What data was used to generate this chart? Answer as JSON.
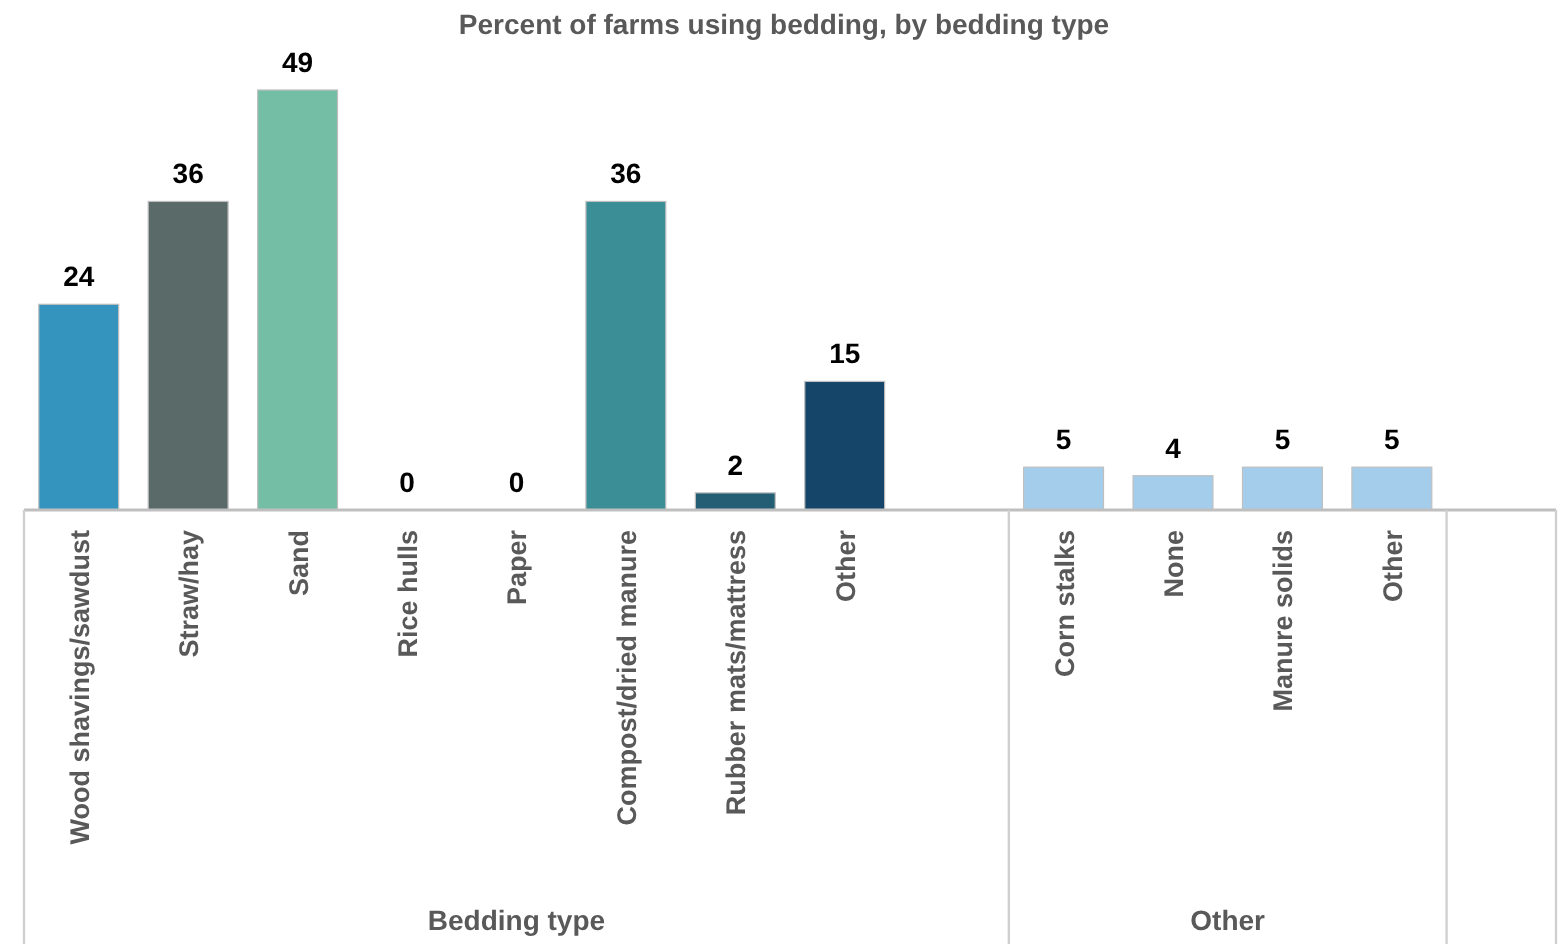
{
  "chart_data": {
    "type": "bar",
    "title": "Percent of farms using bedding, by bedding type",
    "categories": [
      "Wood shavings/sawdust",
      "Straw/hay",
      "Sand",
      "Rice hulls",
      "Paper",
      "Compost/dried manure",
      "Rubber mats/mattress",
      "Other",
      null,
      "Corn stalks",
      "None",
      "Manure solids",
      "Other",
      null
    ],
    "values": [
      24,
      36,
      49,
      0,
      0,
      36,
      2,
      15,
      null,
      5,
      4,
      5,
      5,
      null
    ],
    "colors": [
      "#3494bd",
      "#5a6a68",
      "#74bea6",
      "#3494bd",
      "#3494bd",
      "#3b8e96",
      "#245e74",
      "#15466a",
      null,
      "#a4cdeb",
      "#a4cdeb",
      "#a4cdeb",
      "#a4cdeb",
      null
    ],
    "data_labels": true,
    "annotations": [
      "Bedding type",
      "Other"
    ]
  }
}
